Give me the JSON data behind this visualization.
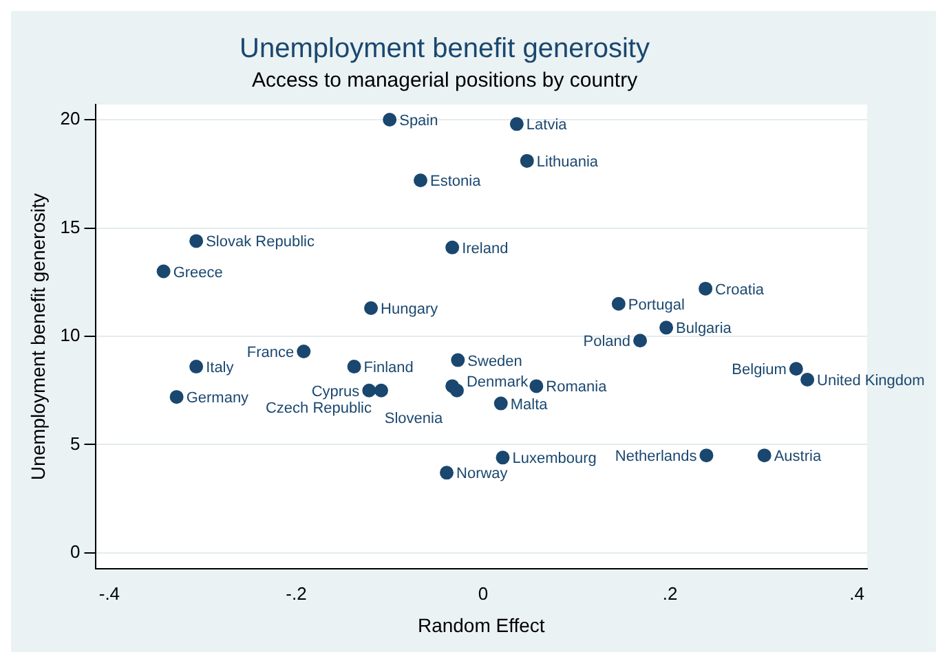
{
  "chart_data": {
    "type": "scatter",
    "title": "Unemployment benefit generosity",
    "subtitle": "Access to managerial positions by country",
    "xlabel": "Random Effect",
    "ylabel": "Unemployment benefit generosity",
    "x": [
      -0.1,
      0.036,
      0.047,
      -0.067,
      -0.307,
      -0.033,
      -0.342,
      -0.12,
      0.238,
      0.145,
      0.196,
      0.168,
      -0.192,
      -0.307,
      -0.138,
      -0.027,
      -0.328,
      0.335,
      0.347,
      -0.122,
      -0.109,
      -0.033,
      -0.028,
      0.057,
      0.019,
      0.021,
      -0.039,
      0.239,
      0.301
    ],
    "values": [
      20.0,
      19.8,
      18.1,
      17.2,
      14.4,
      14.1,
      13.0,
      11.3,
      12.2,
      11.5,
      10.4,
      9.8,
      9.3,
      8.6,
      8.6,
      8.9,
      7.2,
      8.5,
      8.0,
      7.5,
      7.5,
      7.7,
      7.5,
      7.7,
      6.9,
      4.4,
      3.7,
      4.5,
      4.5
    ],
    "value_labels": [
      "Spain",
      "Latvia",
      "Lithuania",
      "Estonia",
      "Slovak Republic",
      "Ireland",
      "Greece",
      "Hungary",
      "Croatia",
      "Portugal",
      "Bulgaria",
      "Poland",
      "France",
      "Italy",
      "Finland",
      "Sweden",
      "Germany",
      "Belgium",
      "United Kingdom",
      "Cyprus",
      "Czech Republic",
      "Slovenia",
      "Denmark",
      "Romania",
      "Malta",
      "Luxembourg",
      "Norway",
      "Netherlands",
      "Austria"
    ],
    "color": "#1a476f",
    "marker": "circle",
    "grid": "y",
    "xlim": [
      -0.415,
      0.411
    ],
    "xticks": [
      {
        "value": -0.4,
        "label": "-.4"
      },
      {
        "value": -0.2,
        "label": "-.2"
      },
      0,
      {
        "value": 0.2,
        "label": ".2"
      },
      {
        "value": 0.4,
        "label": ".4"
      }
    ],
    "ylim": [
      -0.74,
      20.7
    ],
    "yticks": [
      0,
      5,
      10,
      15,
      20
    ]
  }
}
